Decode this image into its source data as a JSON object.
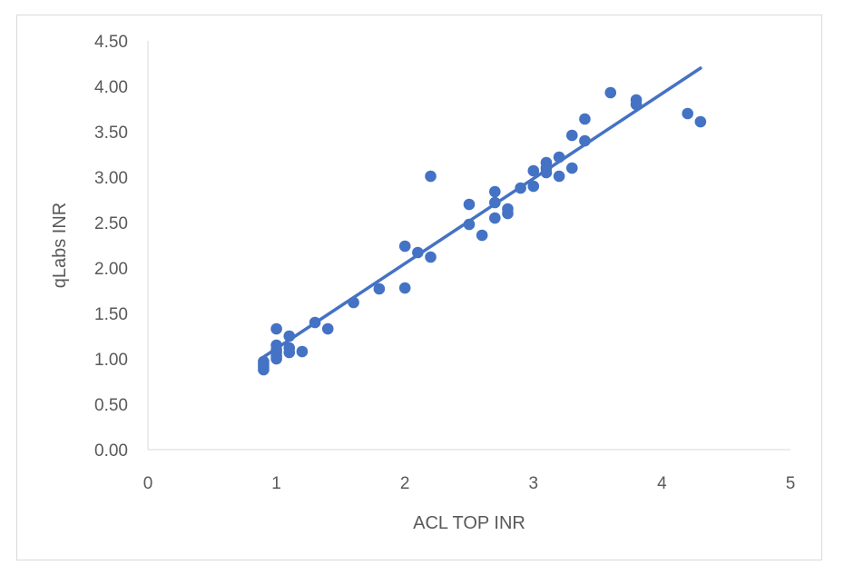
{
  "chart_data": {
    "type": "scatter",
    "title": "",
    "xlabel": "ACL TOP INR",
    "ylabel": "qLabs INR",
    "xlim": [
      0,
      5
    ],
    "ylim": [
      0,
      4.5
    ],
    "x_ticks": [
      "0",
      "1",
      "2",
      "3",
      "4",
      "5"
    ],
    "y_ticks": [
      "0.00",
      "0.50",
      "1.00",
      "1.50",
      "2.00",
      "2.50",
      "3.00",
      "3.50",
      "4.00",
      "4.50"
    ],
    "grid": false,
    "legend": "none",
    "marker_color": "#4472C4",
    "trendline": {
      "type": "linear",
      "from": [
        0.9,
        1.02
      ],
      "to": [
        4.3,
        4.2
      ]
    },
    "points": [
      {
        "x": 0.9,
        "y": 0.88
      },
      {
        "x": 0.9,
        "y": 0.91
      },
      {
        "x": 0.9,
        "y": 0.94
      },
      {
        "x": 0.9,
        "y": 0.97
      },
      {
        "x": 1.0,
        "y": 1.0
      },
      {
        "x": 1.0,
        "y": 1.03
      },
      {
        "x": 1.0,
        "y": 1.07
      },
      {
        "x": 1.0,
        "y": 1.1
      },
      {
        "x": 1.0,
        "y": 1.15
      },
      {
        "x": 1.0,
        "y": 1.33
      },
      {
        "x": 1.1,
        "y": 1.07
      },
      {
        "x": 1.1,
        "y": 1.12
      },
      {
        "x": 1.1,
        "y": 1.25
      },
      {
        "x": 1.2,
        "y": 1.08
      },
      {
        "x": 1.3,
        "y": 1.4
      },
      {
        "x": 1.4,
        "y": 1.33
      },
      {
        "x": 1.6,
        "y": 1.62
      },
      {
        "x": 1.8,
        "y": 1.77
      },
      {
        "x": 2.0,
        "y": 1.78
      },
      {
        "x": 2.0,
        "y": 2.24
      },
      {
        "x": 2.1,
        "y": 2.17
      },
      {
        "x": 2.2,
        "y": 2.12
      },
      {
        "x": 2.2,
        "y": 3.01
      },
      {
        "x": 2.5,
        "y": 2.48
      },
      {
        "x": 2.5,
        "y": 2.7
      },
      {
        "x": 2.6,
        "y": 2.36
      },
      {
        "x": 2.7,
        "y": 2.55
      },
      {
        "x": 2.7,
        "y": 2.72
      },
      {
        "x": 2.7,
        "y": 2.84
      },
      {
        "x": 2.8,
        "y": 2.6
      },
      {
        "x": 2.8,
        "y": 2.65
      },
      {
        "x": 2.9,
        "y": 2.88
      },
      {
        "x": 3.0,
        "y": 2.9
      },
      {
        "x": 3.0,
        "y": 3.07
      },
      {
        "x": 3.1,
        "y": 3.05
      },
      {
        "x": 3.1,
        "y": 3.1
      },
      {
        "x": 3.1,
        "y": 3.16
      },
      {
        "x": 3.2,
        "y": 3.01
      },
      {
        "x": 3.2,
        "y": 3.22
      },
      {
        "x": 3.3,
        "y": 3.1
      },
      {
        "x": 3.3,
        "y": 3.46
      },
      {
        "x": 3.4,
        "y": 3.4
      },
      {
        "x": 3.4,
        "y": 3.64
      },
      {
        "x": 3.6,
        "y": 3.93
      },
      {
        "x": 3.8,
        "y": 3.8
      },
      {
        "x": 3.8,
        "y": 3.85
      },
      {
        "x": 4.2,
        "y": 3.7
      },
      {
        "x": 4.3,
        "y": 3.61
      }
    ]
  }
}
